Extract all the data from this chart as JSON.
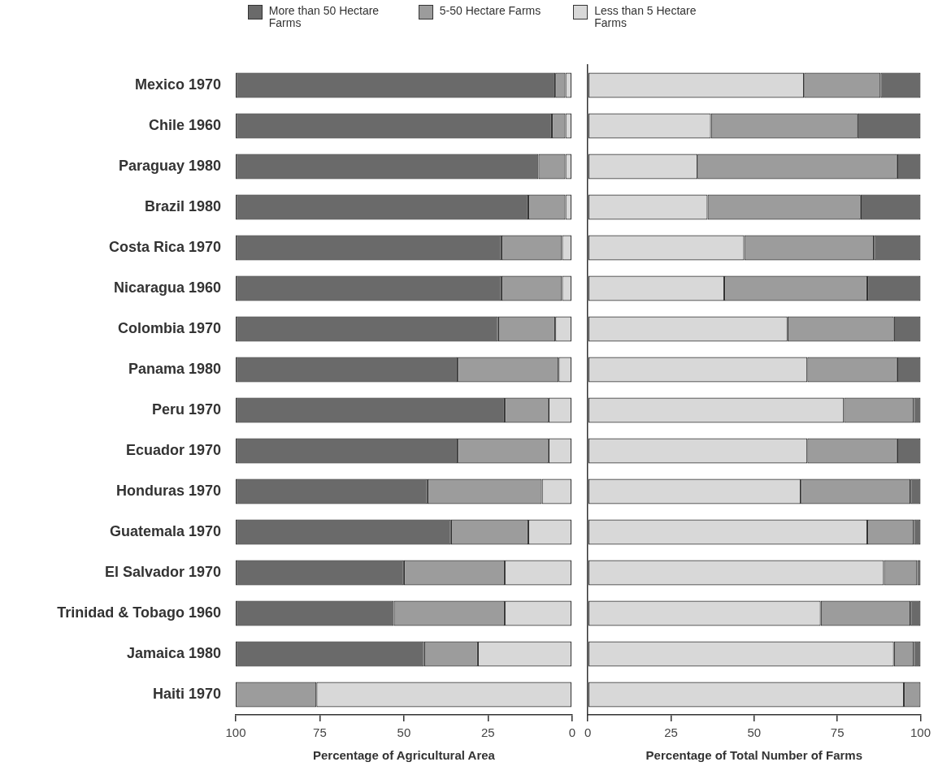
{
  "chart_data": [
    {
      "type": "bar",
      "orientation": "horizontal",
      "stacked": true,
      "xlabel": "Percentage of Agricultural Area",
      "legend": "top",
      "categories": [
        "Mexico 1970",
        "Chile 1960",
        "Paraguay 1980",
        "Brazil 1980",
        "Costa Rica 1970",
        "Nicaragua 1960",
        "Colombia 1970",
        "Panama 1980",
        "Peru 1970",
        "Ecuador 1970",
        "Honduras 1970",
        "Guatemala 1970",
        "El Salvador 1970",
        "Trinidad & Tobago 1960",
        "Jamaica 1980",
        "Haiti 1970"
      ],
      "xlim": [
        100,
        0
      ],
      "xticks": [
        100,
        75,
        50,
        25,
        0
      ],
      "series": [
        {
          "name": "Less than 5 Hectare Farms",
          "color": "#d8d8d8",
          "values": [
            2,
            2,
            2,
            2,
            3,
            3,
            5,
            4,
            7,
            7,
            9,
            13,
            20,
            20,
            28,
            76
          ]
        },
        {
          "name": "5-50 Hectare Farms",
          "color": "#9c9c9c",
          "values": [
            3,
            4,
            8,
            11,
            18,
            18,
            17,
            30,
            13,
            27,
            34,
            23,
            30,
            33,
            16,
            24
          ]
        },
        {
          "name": "More than 50 Hectare Farms",
          "color": "#6a6a6a",
          "values": [
            95,
            94,
            90,
            87,
            79,
            79,
            78,
            66,
            80,
            66,
            57,
            64,
            50,
            47,
            56,
            0
          ]
        }
      ]
    },
    {
      "type": "bar",
      "orientation": "horizontal",
      "stacked": true,
      "xlabel": "Percentage of Total Number of Farms",
      "tick_labels": "x",
      "categories": [
        null,
        null,
        null,
        null,
        null,
        null,
        null,
        null,
        null,
        null,
        null,
        null,
        null,
        null,
        null,
        null
      ],
      "xlim": [
        0,
        100
      ],
      "xticks": [
        0,
        25,
        50,
        75,
        100
      ],
      "series": [
        {
          "color": "#d8d8d8",
          "values": [
            65,
            37,
            33,
            36,
            47,
            41,
            60,
            66,
            77,
            66,
            64,
            84,
            89,
            70,
            92,
            95
          ]
        },
        {
          "color": "#9c9c9c",
          "values": [
            23,
            44,
            60,
            46,
            39,
            43,
            32,
            27,
            21,
            27,
            33,
            14,
            10,
            27,
            6,
            5
          ]
        },
        {
          "color": "#6a6a6a",
          "values": [
            12,
            19,
            7,
            18,
            14,
            16,
            8,
            7,
            2,
            7,
            3,
            2,
            1,
            3,
            2,
            0
          ]
        }
      ]
    }
  ]
}
